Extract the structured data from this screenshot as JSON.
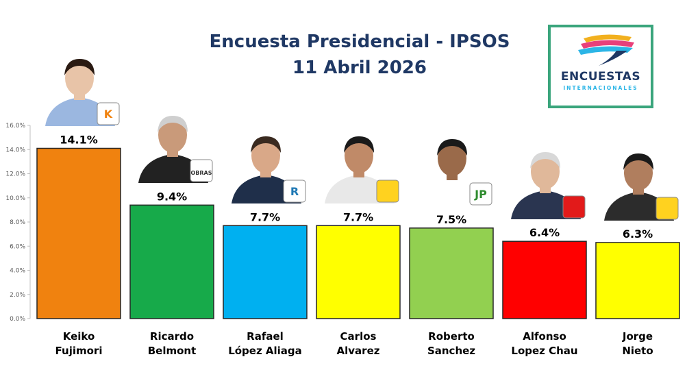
{
  "chart_data": {
    "type": "bar",
    "title": "Encuesta Presidencial - IPSOS",
    "subtitle": "11 Abril 2026",
    "categories": [
      [
        "Keiko",
        "Fujimori"
      ],
      [
        "Ricardo",
        "Belmont"
      ],
      [
        "Rafael",
        "López Aliaga"
      ],
      [
        "Carlos",
        "Alvarez"
      ],
      [
        "Roberto",
        "Sanchez"
      ],
      [
        "Alfonso",
        "Lopez Chau"
      ],
      [
        "Jorge",
        "Nieto"
      ]
    ],
    "values": [
      14.1,
      9.4,
      7.7,
      7.7,
      7.5,
      6.4,
      6.3
    ],
    "value_labels": [
      "14.1%",
      "9.4%",
      "7.7%",
      "7.7%",
      "7.5%",
      "6.4%",
      "6.3%"
    ],
    "bar_colors": [
      "#f0820f",
      "#17aa4a",
      "#00b0f0",
      "#ffff00",
      "#92d050",
      "#ff0000",
      "#ffff00"
    ],
    "yticks": [
      "0.0%",
      "2.0%",
      "4.0%",
      "6.0%",
      "8.0%",
      "10.0%",
      "12.0%",
      "14.0%",
      "16.0%"
    ],
    "ylim": [
      0,
      16
    ],
    "grid": false,
    "legend": "none"
  },
  "logo": {
    "line1": "ENCUESTAS",
    "line2": "INTERNACIONALES"
  },
  "party_badges": [
    "K",
    "OBRAS",
    "R",
    "",
    "JP",
    "",
    ""
  ]
}
